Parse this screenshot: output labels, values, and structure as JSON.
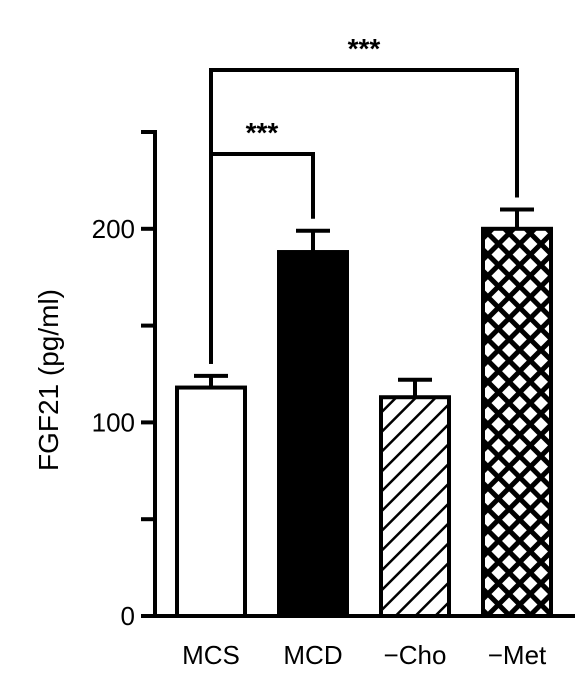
{
  "chart_data": {
    "type": "bar",
    "categories": [
      "MCS",
      "MCD",
      "−Cho",
      "−Met"
    ],
    "values": [
      118,
      188,
      113,
      200
    ],
    "errors": [
      6,
      11,
      9,
      10
    ],
    "fills": [
      "white",
      "black",
      "diagonal-stripes",
      "crosshatch"
    ],
    "title": "",
    "xlabel": "",
    "ylabel": "FGF21 (pg/ml)",
    "ylim": [
      0,
      250
    ],
    "yticks_labeled": [
      0,
      100,
      200
    ],
    "yticks_minor": [
      50,
      150,
      250
    ],
    "grid": false,
    "significance": [
      {
        "from": "MCS",
        "to": "MCD",
        "label": "***"
      },
      {
        "from": "MCS",
        "to": "−Met",
        "label": "***"
      }
    ]
  }
}
